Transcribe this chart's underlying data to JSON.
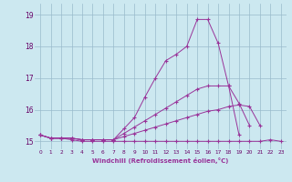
{
  "xlabel": "Windchill (Refroidissement éolien,°C)",
  "background_color": "#cce8f0",
  "grid_color": "#99bbcc",
  "line_color": "#993399",
  "xlim": [
    -0.5,
    23.5
  ],
  "ylim": [
    14.75,
    19.35
  ],
  "xticks": [
    0,
    1,
    2,
    3,
    4,
    5,
    6,
    7,
    8,
    9,
    10,
    11,
    12,
    13,
    14,
    15,
    16,
    17,
    18,
    19,
    20,
    21,
    22,
    23
  ],
  "yticks": [
    15,
    16,
    17,
    18,
    19
  ],
  "series": [
    [
      15.2,
      15.1,
      15.1,
      15.1,
      15.05,
      15.05,
      15.05,
      15.05,
      15.4,
      15.75,
      16.4,
      17.0,
      17.55,
      17.75,
      18.0,
      18.85,
      18.85,
      18.1,
      16.75,
      15.2,
      null,
      null,
      null,
      null
    ],
    [
      15.2,
      15.1,
      15.1,
      15.1,
      15.05,
      15.05,
      15.05,
      15.05,
      15.25,
      15.45,
      15.65,
      15.85,
      16.05,
      16.25,
      16.45,
      16.65,
      16.75,
      16.75,
      16.75,
      16.2,
      15.5,
      null,
      null,
      null
    ],
    [
      15.2,
      15.1,
      15.1,
      15.1,
      15.05,
      15.05,
      15.05,
      15.05,
      15.15,
      15.25,
      15.35,
      15.45,
      15.55,
      15.65,
      15.75,
      15.85,
      15.95,
      16.0,
      16.1,
      16.15,
      16.1,
      15.5,
      null,
      null
    ],
    [
      15.2,
      15.1,
      15.1,
      15.05,
      15.0,
      15.0,
      15.0,
      15.0,
      15.0,
      15.0,
      15.0,
      15.0,
      15.0,
      15.0,
      15.0,
      15.0,
      15.0,
      15.0,
      15.0,
      15.0,
      15.0,
      15.0,
      15.05,
      15.0
    ]
  ]
}
